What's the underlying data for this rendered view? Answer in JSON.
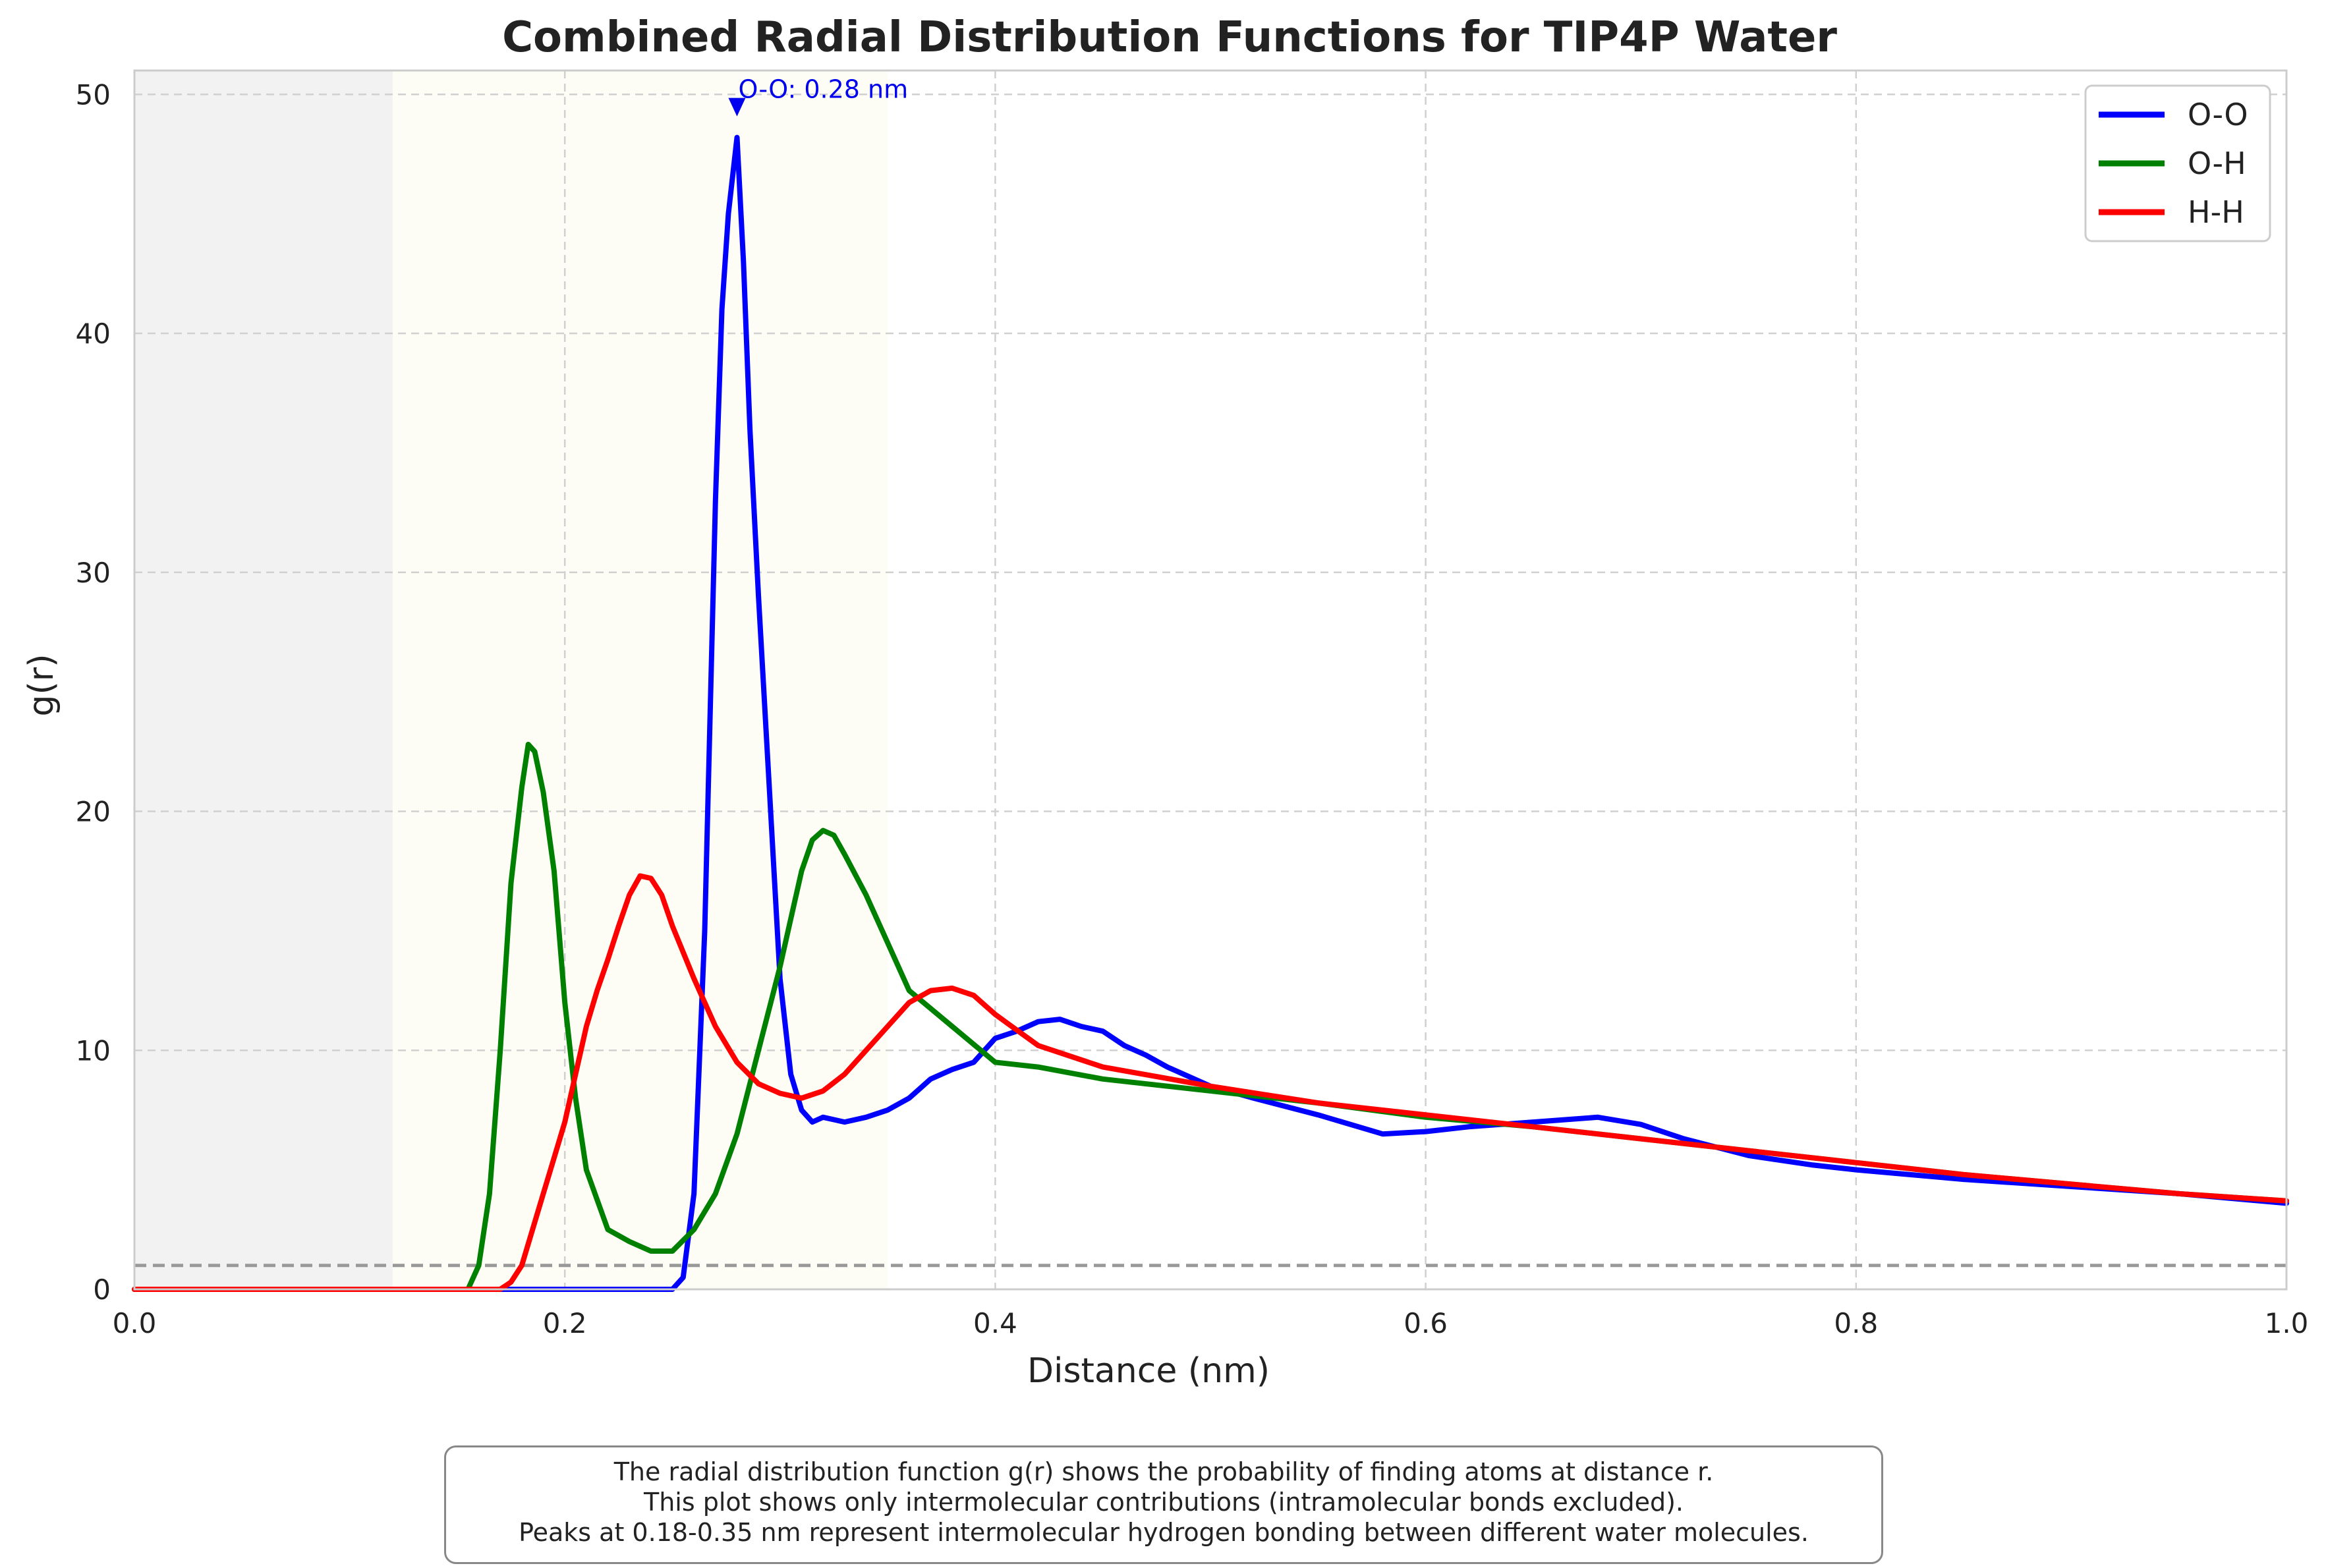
{
  "chart_data": {
    "type": "line",
    "title": "Combined Radial Distribution Functions for TIP4P Water",
    "xlabel": "Distance (nm)",
    "ylabel": "g(r)",
    "xlim": [
      0.0,
      1.0
    ],
    "ylim": [
      0,
      51
    ],
    "xticks": [
      0.0,
      0.2,
      0.4,
      0.6,
      0.8,
      1.0
    ],
    "xtick_labels": [
      "0.0",
      "0.2",
      "0.4",
      "0.6",
      "0.8",
      "1.0"
    ],
    "yticks": [
      0,
      10,
      20,
      30,
      40,
      50
    ],
    "ytick_labels": [
      "0",
      "10",
      "20",
      "30",
      "40",
      "50"
    ],
    "grid": true,
    "legend_position": "top-right",
    "reference_line": {
      "y": 1.0,
      "style": "dashed",
      "color": "#999999"
    },
    "shaded_regions": [
      {
        "x0": 0.0,
        "x1": 0.12,
        "color": "#f2f2f2"
      },
      {
        "x0": 0.12,
        "x1": 0.35,
        "color": "#fdfdf5"
      }
    ],
    "annotation": {
      "text": "O-O: 0.28 nm",
      "x": 0.28,
      "y": 49.3,
      "color": "#0000ee"
    },
    "series": [
      {
        "name": "O-O",
        "color": "#0000ff",
        "x": [
          0.0,
          0.25,
          0.255,
          0.26,
          0.265,
          0.27,
          0.273,
          0.276,
          0.28,
          0.283,
          0.286,
          0.29,
          0.295,
          0.3,
          0.305,
          0.31,
          0.315,
          0.32,
          0.33,
          0.34,
          0.35,
          0.36,
          0.37,
          0.38,
          0.39,
          0.4,
          0.41,
          0.42,
          0.43,
          0.44,
          0.45,
          0.46,
          0.47,
          0.48,
          0.5,
          0.52,
          0.55,
          0.58,
          0.6,
          0.62,
          0.65,
          0.68,
          0.7,
          0.72,
          0.75,
          0.78,
          0.8,
          0.85,
          0.9,
          0.95,
          1.0
        ],
        "y": [
          0.0,
          0.0,
          0.5,
          4,
          15,
          33,
          41,
          45,
          48.2,
          43,
          36,
          29,
          21,
          13,
          9,
          7.5,
          7,
          7.2,
          7.0,
          7.2,
          7.5,
          8,
          8.8,
          9.2,
          9.5,
          10.5,
          10.8,
          11.2,
          11.3,
          11.0,
          10.8,
          10.2,
          9.8,
          9.3,
          8.5,
          8.0,
          7.3,
          6.5,
          6.6,
          6.8,
          7.0,
          7.2,
          6.9,
          6.3,
          5.6,
          5.2,
          5.0,
          4.6,
          4.3,
          4.0,
          3.6
        ]
      },
      {
        "name": "O-H",
        "color": "#008000",
        "x": [
          0.0,
          0.155,
          0.16,
          0.165,
          0.17,
          0.175,
          0.18,
          0.183,
          0.186,
          0.19,
          0.195,
          0.2,
          0.205,
          0.21,
          0.22,
          0.23,
          0.24,
          0.25,
          0.26,
          0.27,
          0.28,
          0.29,
          0.3,
          0.305,
          0.31,
          0.315,
          0.32,
          0.325,
          0.33,
          0.34,
          0.35,
          0.36,
          0.38,
          0.4,
          0.42,
          0.45,
          0.5,
          0.55,
          0.6,
          0.65,
          0.7,
          0.75,
          0.8,
          0.85,
          0.9,
          0.95,
          1.0
        ],
        "y": [
          0.0,
          0.0,
          1,
          4,
          10,
          17,
          21,
          22.8,
          22.5,
          20.8,
          17.5,
          12,
          8,
          5,
          2.5,
          2.0,
          1.6,
          1.6,
          2.5,
          4.0,
          6.5,
          10,
          13.5,
          15.5,
          17.5,
          18.8,
          19.2,
          19.0,
          18.2,
          16.5,
          14.5,
          12.5,
          11,
          9.5,
          9.3,
          8.8,
          8.3,
          7.8,
          7.2,
          6.8,
          6.3,
          5.8,
          5.3,
          4.8,
          4.4,
          4.0,
          3.7
        ]
      },
      {
        "name": "H-H",
        "color": "#ff0000",
        "x": [
          0.0,
          0.17,
          0.175,
          0.18,
          0.185,
          0.19,
          0.195,
          0.2,
          0.205,
          0.21,
          0.215,
          0.22,
          0.225,
          0.23,
          0.235,
          0.24,
          0.245,
          0.25,
          0.26,
          0.27,
          0.28,
          0.29,
          0.3,
          0.31,
          0.32,
          0.33,
          0.34,
          0.35,
          0.36,
          0.37,
          0.38,
          0.39,
          0.4,
          0.42,
          0.45,
          0.5,
          0.55,
          0.6,
          0.65,
          0.7,
          0.75,
          0.8,
          0.85,
          0.9,
          0.95,
          1.0
        ],
        "y": [
          0.0,
          0.0,
          0.3,
          1,
          2.5,
          4,
          5.5,
          7,
          9,
          11,
          12.5,
          13.8,
          15.2,
          16.5,
          17.3,
          17.2,
          16.5,
          15.2,
          13,
          11,
          9.5,
          8.6,
          8.2,
          8.0,
          8.3,
          9.0,
          10,
          11,
          12,
          12.5,
          12.6,
          12.3,
          11.5,
          10.2,
          9.3,
          8.5,
          7.8,
          7.3,
          6.8,
          6.3,
          5.8,
          5.3,
          4.8,
          4.4,
          4.0,
          3.7
        ]
      }
    ]
  },
  "caption": {
    "lines": [
      "The radial distribution function g(r) shows the probability of finding atoms at distance r.",
      "This plot shows only intermolecular contributions (intramolecular bonds excluded).",
      "Peaks at 0.18-0.35 nm represent intermolecular hydrogen bonding between different water molecules."
    ]
  }
}
